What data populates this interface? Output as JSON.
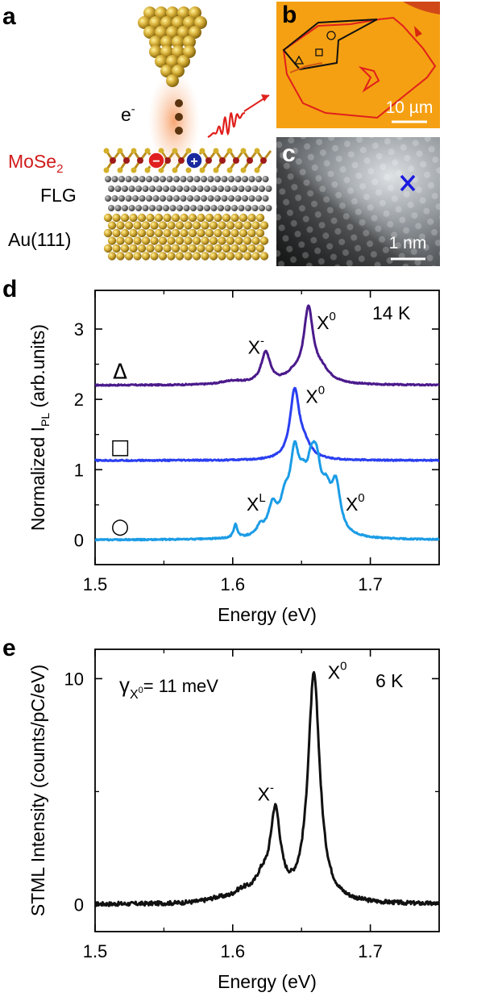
{
  "panels": {
    "a": "a",
    "b": "b",
    "c": "c",
    "d": "d",
    "e": "e"
  },
  "schematic": {
    "electron_label": "e",
    "electron_sup": "-",
    "layer1": "MoSe",
    "layer1_sub": "2",
    "layer2": "FLG",
    "layer3": "Au(111)",
    "minus": "−",
    "plus": "+",
    "colors": {
      "tip": "#c9a227",
      "layer1": "#d11a1a",
      "hole": "#1a2a9e",
      "electron": "#e02020",
      "photon": "#e0201c"
    }
  },
  "optical_image": {
    "scale_bar": "10 µm",
    "colors": {
      "bg": "#f5a012",
      "outline_red": "#e0201c",
      "outline_black": "#111111"
    }
  },
  "stm_image": {
    "scale_bar": "1 nm",
    "marker_color": "#1a1ae0"
  },
  "chart_data": [
    {
      "type": "line",
      "panel": "d",
      "xlabel": "Energy (eV)",
      "ylabel": "Normalized I",
      "ylabel_sub": "PL",
      "ylabel_tail": " (arb.units)",
      "xlim": [
        1.5,
        1.75
      ],
      "ylim": [
        -0.35,
        3.55
      ],
      "xticks": [
        "1.5",
        "1.6",
        "1.7"
      ],
      "xtick_values": [
        1.5,
        1.6,
        1.7
      ],
      "yticks": [
        "0",
        "1",
        "2",
        "3"
      ],
      "ytick_values": [
        0,
        1,
        2,
        3
      ],
      "temperature": "14 K",
      "series": [
        {
          "name": "Δ",
          "color": "#4b1a8c",
          "offset": 2.2,
          "peaks": [
            [
              1.655,
              1.0,
              0.004
            ],
            [
              1.624,
              0.44,
              0.004
            ],
            [
              1.6,
              0.05,
              0.01
            ],
            [
              1.645,
              0.12,
              0.008
            ],
            [
              1.664,
              0.18,
              0.008
            ]
          ],
          "labels": [
            {
              "base": "X",
              "sup": "-",
              "x": 1.617,
              "y": 2.65
            },
            {
              "base": "X",
              "sup": "0",
              "x": 1.668,
              "y": 3.0
            }
          ]
        },
        {
          "name": "□",
          "color": "#2a3ff0",
          "offset": 1.13,
          "peaks": [
            [
              1.645,
              0.96,
              0.004
            ],
            [
              1.652,
              0.18,
              0.006
            ]
          ],
          "labels": [
            {
              "base": "X",
              "sup": "0",
              "x": 1.66,
              "y": 1.95
            }
          ]
        },
        {
          "name": "○",
          "color": "#1b9ce6",
          "offset": 0.0,
          "peaks": [
            [
              1.602,
              0.2,
              0.0015
            ],
            [
              1.62,
              0.12,
              0.003
            ],
            [
              1.629,
              0.4,
              0.004
            ],
            [
              1.638,
              0.4,
              0.004
            ],
            [
              1.645,
              1.0,
              0.004
            ],
            [
              1.651,
              0.45,
              0.004
            ],
            [
              1.657,
              0.65,
              0.004
            ],
            [
              1.661,
              0.72,
              0.004
            ],
            [
              1.668,
              0.45,
              0.004
            ],
            [
              1.675,
              0.67,
              0.004
            ]
          ],
          "labels": [
            {
              "base": "X",
              "sup": "L",
              "x": 1.617,
              "y": 0.42
            },
            {
              "base": "X",
              "sup": "0",
              "x": 1.689,
              "y": 0.42
            }
          ]
        }
      ]
    },
    {
      "type": "line",
      "panel": "e",
      "xlabel": "Energy (eV)",
      "ylabel": "STML Intensity (counts/pC/eV)",
      "xlim": [
        1.5,
        1.75
      ],
      "ylim": [
        -1.2,
        11.3
      ],
      "xticks": [
        "1.5",
        "1.6",
        "1.7"
      ],
      "xtick_values": [
        1.5,
        1.6,
        1.7
      ],
      "yticks": [
        "0",
        "10"
      ],
      "ytick_values": [
        0,
        10
      ],
      "temperature": "6 K",
      "gamma_label": "γ",
      "gamma_sub": "X",
      "gamma_subsup": "0",
      "gamma_value": "= 11 meV",
      "series": [
        {
          "name": "STML",
          "color": "#111111",
          "offset": 0.0,
          "peaks": [
            [
              1.659,
              10.1,
              0.0052
            ],
            [
              1.631,
              3.8,
              0.0045
            ],
            [
              1.621,
              0.8,
              0.006
            ],
            [
              1.607,
              0.4,
              0.008
            ],
            [
              1.589,
              0.15,
              0.01
            ]
          ],
          "labels": [
            {
              "base": "X",
              "sup": "-",
              "x": 1.624,
              "y": 4.6
            },
            {
              "base": "X",
              "sup": "0",
              "x": 1.676,
              "y": 10.0
            }
          ]
        }
      ]
    }
  ]
}
